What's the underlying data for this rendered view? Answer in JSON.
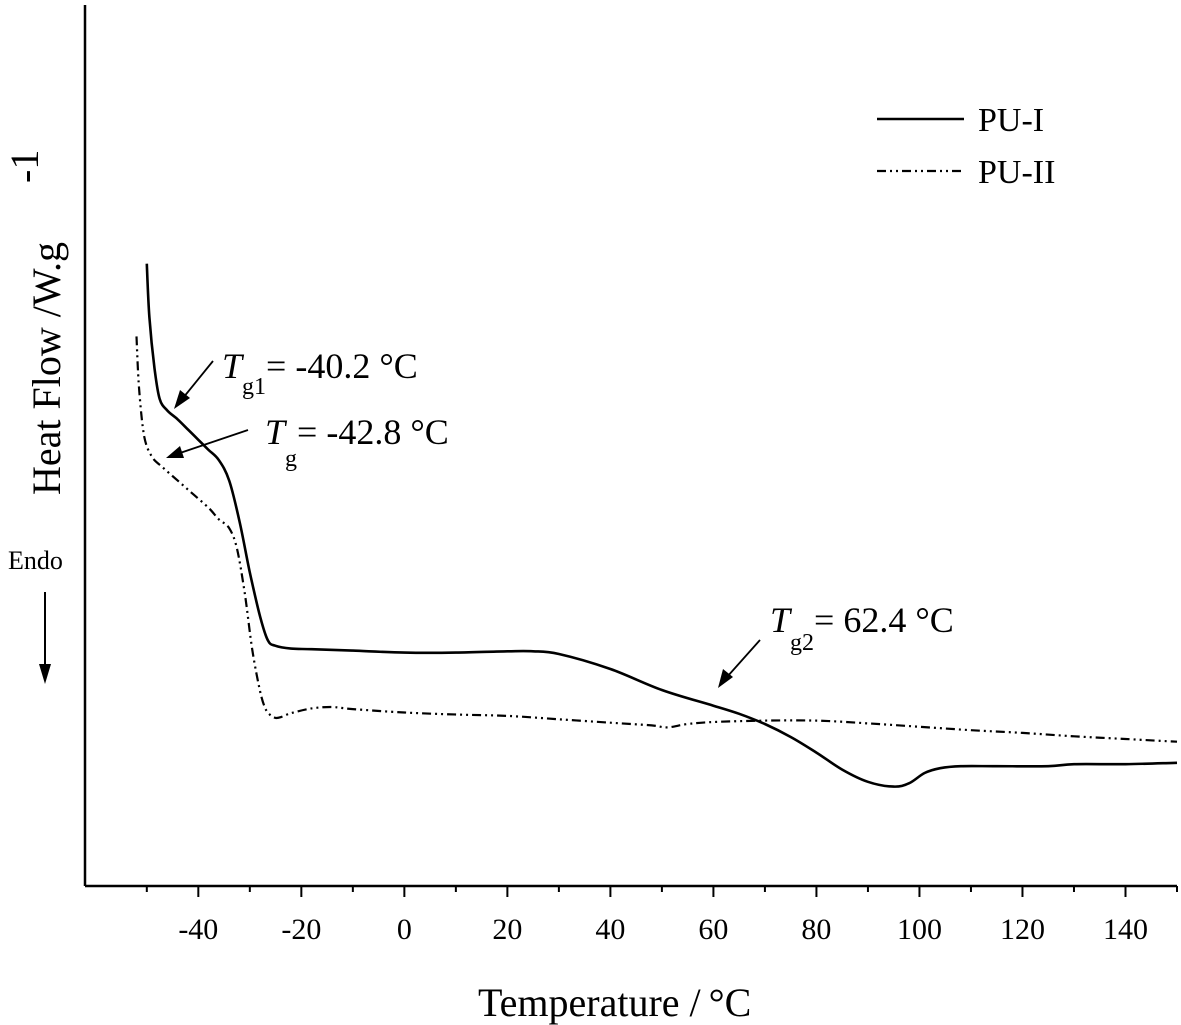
{
  "chart_data": {
    "type": "line",
    "xlabel": "Temperature /",
    "xlabel_unit": "°C",
    "ylabel": "Heat Flow  /W.g",
    "ylabel_exp": "-1",
    "xlim": [
      -62,
      150
    ],
    "ylim": [
      0,
      10
    ],
    "x_ticks": [
      -40,
      -20,
      0,
      20,
      40,
      60,
      80,
      100,
      120,
      140
    ],
    "y_ticks_shown": false,
    "grid": false,
    "legend_position": "top-right",
    "endo_label": "Endo",
    "series": [
      {
        "name": "PU-I",
        "style": "solid",
        "x": [
          -50,
          -49.5,
          -48.5,
          -47.5,
          -46,
          -44,
          -42,
          -40,
          -38,
          -36,
          -34,
          -32,
          -30,
          -28,
          -26.5,
          -25,
          -22,
          -18,
          -10,
          0,
          10,
          20,
          25,
          30,
          40,
          50,
          60,
          65,
          70,
          75,
          80,
          85,
          90,
          95,
          98,
          101,
          104,
          108,
          115,
          125,
          130,
          140,
          150
        ],
        "y": [
          7.74,
          6.95,
          6.2,
          5.75,
          5.58,
          5.45,
          5.3,
          5.15,
          5.0,
          4.85,
          4.55,
          3.95,
          3.2,
          2.55,
          2.2,
          2.12,
          2.08,
          2.07,
          2.05,
          2.02,
          2.02,
          2.04,
          2.04,
          2.0,
          1.78,
          1.47,
          1.24,
          1.12,
          0.97,
          0.78,
          0.55,
          0.3,
          0.12,
          0.05,
          0.1,
          0.25,
          0.32,
          0.35,
          0.35,
          0.35,
          0.38,
          0.38,
          0.4
        ]
      },
      {
        "name": "PU-II",
        "style": "dash-dot-dot",
        "x": [
          -52,
          -51.5,
          -50.5,
          -49,
          -47,
          -44,
          -41,
          -38,
          -36,
          -34,
          -32.5,
          -31,
          -29.5,
          -28,
          -27,
          -26,
          -25,
          -24,
          -22,
          -18,
          -14,
          -10,
          0,
          10,
          20,
          30,
          40,
          48,
          51,
          55,
          60,
          70,
          80,
          90,
          100,
          110,
          120,
          130,
          140,
          150
        ],
        "y": [
          6.67,
          5.9,
          5.2,
          4.9,
          4.75,
          4.55,
          4.35,
          4.15,
          3.98,
          3.85,
          3.55,
          2.9,
          2.05,
          1.45,
          1.2,
          1.1,
          1.06,
          1.07,
          1.13,
          1.2,
          1.22,
          1.19,
          1.14,
          1.11,
          1.09,
          1.04,
          0.99,
          0.95,
          0.92,
          0.97,
          1.0,
          1.02,
          1.02,
          0.98,
          0.93,
          0.88,
          0.84,
          0.79,
          0.75,
          0.71
        ]
      }
    ],
    "annotations": [
      {
        "symbol": "T",
        "subscript": "g1",
        "text": "= -40.2 °C",
        "series": "PU-I",
        "x": -40.2
      },
      {
        "symbol": "T",
        "subscript": "g",
        "text": "= -42.8 °C",
        "series": "PU-II",
        "x": -42.8
      },
      {
        "symbol": "T",
        "subscript": "g2",
        "text": "= 62.4 °C",
        "series": "PU-I",
        "x": 62.4
      }
    ]
  }
}
